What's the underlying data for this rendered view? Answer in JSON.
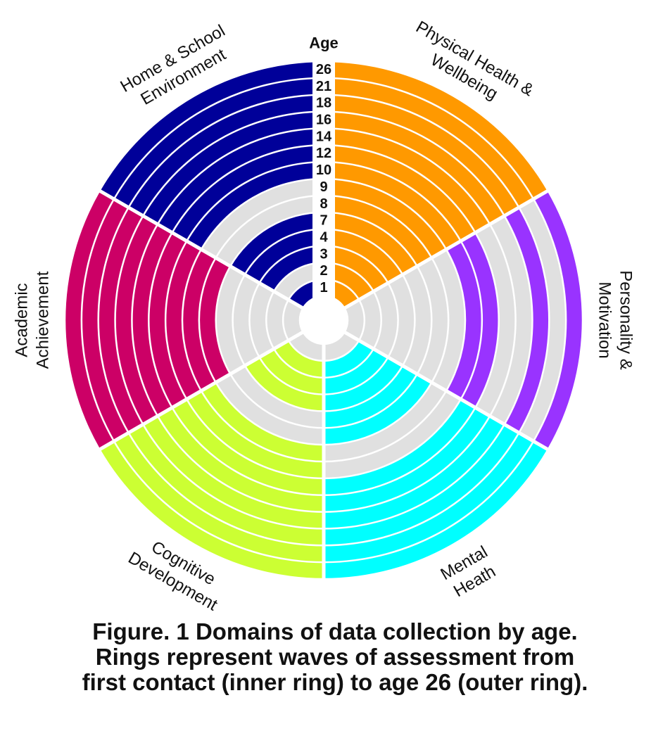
{
  "chart_data": {
    "type": "radial-ring",
    "title": "Domains of data collection by age",
    "age_axis_label": "Age",
    "ages": [
      "1",
      "2",
      "3",
      "4",
      "7",
      "8",
      "9",
      "10",
      "12",
      "14",
      "16",
      "18",
      "21",
      "26"
    ],
    "not_assessed_color": "#e0e0e0",
    "domains": [
      {
        "name": "Physical Health & Wellbeing",
        "label_lines": [
          "Physical Health &",
          "Wellbeing"
        ],
        "color": "#ff9900",
        "start_deg": 0,
        "end_deg": 60,
        "assessed": [
          true,
          true,
          true,
          true,
          true,
          true,
          true,
          true,
          true,
          true,
          true,
          true,
          true,
          true
        ]
      },
      {
        "name": "Personality & Motivation",
        "label_lines": [
          "Personality &",
          "Motivation"
        ],
        "color": "#9933ff",
        "start_deg": 60,
        "end_deg": 120,
        "assessed": [
          false,
          false,
          false,
          false,
          false,
          false,
          false,
          true,
          true,
          false,
          false,
          true,
          false,
          true
        ]
      },
      {
        "name": "Mental Heath",
        "label_lines": [
          "Mental",
          "Heath"
        ],
        "color": "#00ffff",
        "start_deg": 120,
        "end_deg": 180,
        "assessed": [
          false,
          true,
          true,
          true,
          true,
          true,
          false,
          false,
          true,
          true,
          true,
          true,
          true,
          true
        ]
      },
      {
        "name": "Cognitive Development",
        "label_lines": [
          "Cognitive",
          "Development"
        ],
        "color": "#ccff33",
        "start_deg": 180,
        "end_deg": 240,
        "assessed": [
          false,
          true,
          true,
          true,
          false,
          false,
          true,
          true,
          true,
          true,
          true,
          true,
          true,
          true
        ]
      },
      {
        "name": "Academic Achievement",
        "label_lines": [
          "Academic",
          "Achievement"
        ],
        "color": "#cc0066",
        "start_deg": 240,
        "end_deg": 300,
        "assessed": [
          false,
          false,
          false,
          false,
          false,
          true,
          true,
          true,
          true,
          true,
          true,
          true,
          true,
          true
        ]
      },
      {
        "name": "Home & School Environment",
        "label_lines": [
          "Home & School",
          "Environment"
        ],
        "color": "#000099",
        "start_deg": 300,
        "end_deg": 360,
        "assessed": [
          true,
          false,
          true,
          true,
          true,
          false,
          false,
          true,
          true,
          true,
          true,
          true,
          true,
          true
        ]
      }
    ]
  },
  "caption": {
    "line1": "Figure. 1 Domains of data collection by age.",
    "line2": "Rings represent waves of assessment from",
    "line3": "first contact (inner ring) to age 26 (outer ring)."
  }
}
